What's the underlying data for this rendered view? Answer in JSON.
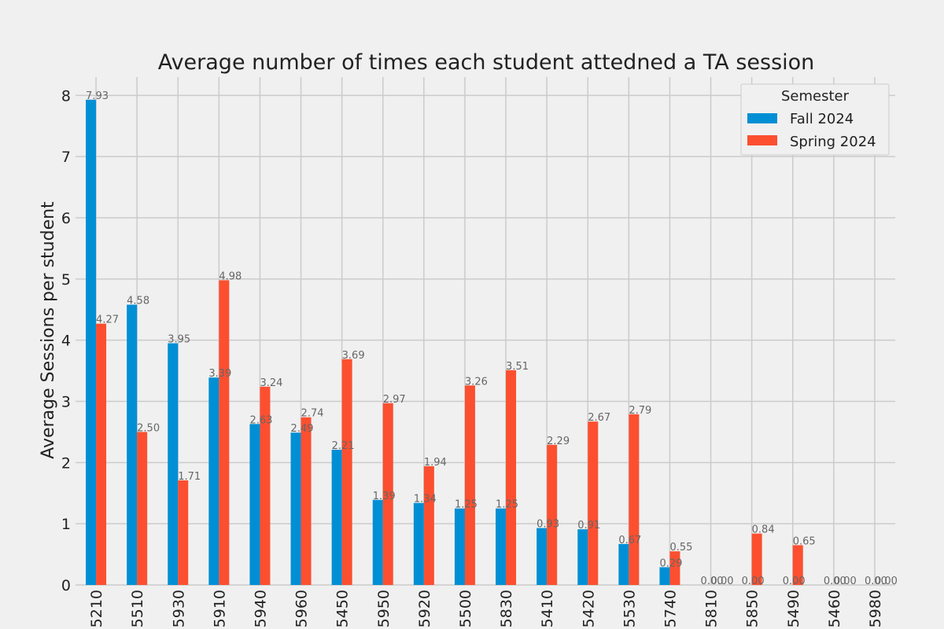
{
  "chart_data": {
    "type": "bar",
    "title": "Average number of times each student attedned a TA session",
    "xlabel": "",
    "ylabel": "Average Sessions per student",
    "ylim": [
      0,
      8.3
    ],
    "yticks": [
      "0",
      "1",
      "2",
      "3",
      "4",
      "5",
      "6",
      "7",
      "8"
    ],
    "categories": [
      "5210",
      "5510",
      "5930",
      "5910",
      "5940",
      "5960",
      "5450",
      "5950",
      "5920",
      "5500",
      "5830",
      "5410",
      "5420",
      "5530",
      "5740",
      "5810",
      "5850",
      "5490",
      "5460",
      "5980"
    ],
    "series": [
      {
        "name": "Fall 2024",
        "color": "#008fd5",
        "values": [
          7.93,
          4.58,
          3.95,
          3.39,
          2.63,
          2.49,
          2.21,
          1.39,
          1.34,
          1.25,
          1.25,
          0.93,
          0.91,
          0.67,
          0.29,
          0.0,
          0.0,
          0.0,
          0.0,
          0.0
        ],
        "value_labels": [
          "7.93",
          "4.58",
          "3.95",
          "3.39",
          "2.63",
          "2.49",
          "2.21",
          "1.39",
          "1.34",
          "1.25",
          "1.25",
          "0.93",
          "0.91",
          "0.67",
          "0.29",
          "0.00",
          "0.00",
          "0.00",
          "0.00",
          "0.00"
        ]
      },
      {
        "name": "Spring 2024",
        "color": "#fc4f30",
        "values": [
          4.27,
          2.5,
          1.71,
          4.98,
          3.24,
          2.74,
          3.69,
          2.97,
          1.94,
          3.26,
          3.51,
          2.29,
          2.67,
          2.79,
          0.55,
          0.0,
          0.84,
          0.65,
          0.0,
          0.0
        ],
        "value_labels": [
          "4.27",
          "2.50",
          "1.71",
          "4.98",
          "3.24",
          "2.74",
          "3.69",
          "2.97",
          "1.94",
          "3.26",
          "3.51",
          "2.29",
          "2.67",
          "2.79",
          "0.55",
          "0.00",
          "0.84",
          "0.65",
          "0.00",
          "0.00"
        ]
      }
    ],
    "legend": {
      "title": "Semester",
      "placement": "top-right"
    },
    "grid": true
  }
}
